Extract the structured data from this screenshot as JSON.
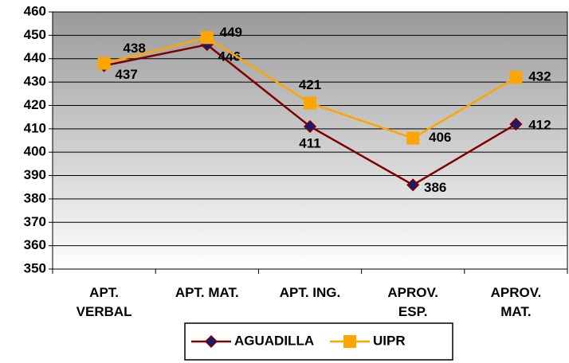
{
  "chart_data": {
    "type": "line",
    "categories": [
      "APT. VERBAL",
      "APT. MAT.",
      "APT. ING.",
      "APROV. ESP.",
      "APROV. MAT."
    ],
    "series": [
      {
        "name": "AGUADILLA",
        "color": "#800000",
        "values": [
          437,
          446,
          411,
          386,
          412
        ]
      },
      {
        "name": "UIPR",
        "color": "#ffa500",
        "values": [
          438,
          449,
          421,
          406,
          432
        ]
      }
    ],
    "ylim": [
      350,
      460
    ],
    "yticks": [
      350,
      360,
      370,
      380,
      390,
      400,
      410,
      420,
      430,
      440,
      450,
      460
    ],
    "grid": true
  }
}
